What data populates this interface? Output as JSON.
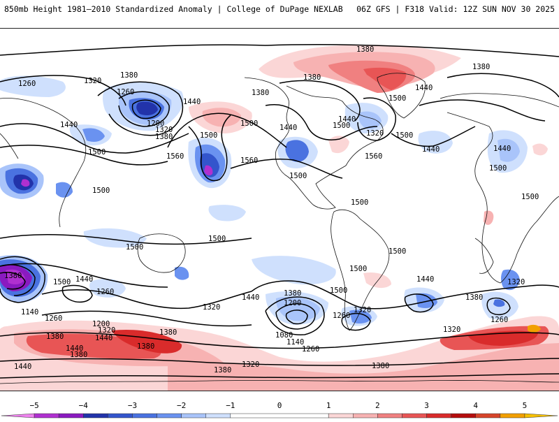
{
  "header": {
    "title": "850mb Height 1981–2010 Standardized Anomaly | College of DuPage NEXLAB",
    "run_info": "06Z GFS | F318 Valid: 12Z SUN NOV 30 2025"
  },
  "colorbar": {
    "ticks": [
      {
        "value": -5,
        "label": "−5"
      },
      {
        "value": -4,
        "label": "−4"
      },
      {
        "value": -3,
        "label": "−3"
      },
      {
        "value": -2,
        "label": "−2"
      },
      {
        "value": -1,
        "label": "−1"
      },
      {
        "value": 0,
        "label": "0"
      },
      {
        "value": 1,
        "label": "1"
      },
      {
        "value": 2,
        "label": "2"
      },
      {
        "value": 3,
        "label": "3"
      },
      {
        "value": 4,
        "label": "4"
      },
      {
        "value": 5,
        "label": "5"
      }
    ],
    "bins": [
      {
        "from": -5.5,
        "to": -5,
        "color": "#ee82ee"
      },
      {
        "from": -5,
        "to": -4.5,
        "color": "#b030d0"
      },
      {
        "from": -4.5,
        "to": -4,
        "color": "#8a1ac0"
      },
      {
        "from": -4,
        "to": -3.5,
        "color": "#2233aa"
      },
      {
        "from": -3.5,
        "to": -3,
        "color": "#3355cc"
      },
      {
        "from": -3,
        "to": -2.5,
        "color": "#4a72e0"
      },
      {
        "from": -2.5,
        "to": -2,
        "color": "#6a92f0"
      },
      {
        "from": -2,
        "to": -1.5,
        "color": "#a9c4fa"
      },
      {
        "from": -1.5,
        "to": -1,
        "color": "#cfe0fd"
      },
      {
        "from": -1,
        "to": 1,
        "color": "#ffffff"
      },
      {
        "from": 1,
        "to": 1.5,
        "color": "#fbd6d6"
      },
      {
        "from": 1.5,
        "to": 2,
        "color": "#f7b2b2"
      },
      {
        "from": 2,
        "to": 2.5,
        "color": "#f08080"
      },
      {
        "from": 2.5,
        "to": 3,
        "color": "#e85555"
      },
      {
        "from": 3,
        "to": 3.5,
        "color": "#d92b2b"
      },
      {
        "from": 3.5,
        "to": 4,
        "color": "#b50d0d"
      },
      {
        "from": 4,
        "to": 4.5,
        "color": "#d6452a"
      },
      {
        "from": 4.5,
        "to": 5,
        "color": "#f2a000"
      },
      {
        "from": 5,
        "to": 5.5,
        "color": "#f6c000"
      }
    ]
  },
  "contour_labels": [
    {
      "text": "1380"
    },
    {
      "text": "1320"
    },
    {
      "text": "1260"
    },
    {
      "text": "1380"
    },
    {
      "text": "1260"
    },
    {
      "text": "1440"
    },
    {
      "text": "1440"
    },
    {
      "text": "1200"
    },
    {
      "text": "1320"
    },
    {
      "text": "1380"
    },
    {
      "text": "1500"
    },
    {
      "text": "1500"
    },
    {
      "text": "1560"
    },
    {
      "text": "1560"
    },
    {
      "text": "1500"
    },
    {
      "text": "1380"
    },
    {
      "text": "1440"
    },
    {
      "text": "1380"
    },
    {
      "text": "1440"
    },
    {
      "text": "1500"
    },
    {
      "text": "1320"
    },
    {
      "text": "1440"
    },
    {
      "text": "1500"
    },
    {
      "text": "1500"
    },
    {
      "text": "1560"
    },
    {
      "text": "1380"
    },
    {
      "text": "1440"
    },
    {
      "text": "1440"
    },
    {
      "text": "1500"
    },
    {
      "text": "1500"
    },
    {
      "text": "1500"
    },
    {
      "text": "1500"
    },
    {
      "text": "1500"
    },
    {
      "text": "1500"
    },
    {
      "text": "1500"
    },
    {
      "text": "1500"
    },
    {
      "text": "1500"
    },
    {
      "text": "1380"
    },
    {
      "text": "1500"
    },
    {
      "text": "1440"
    },
    {
      "text": "1260"
    },
    {
      "text": "1140"
    },
    {
      "text": "1260"
    },
    {
      "text": "1200"
    },
    {
      "text": "1320"
    },
    {
      "text": "1380"
    },
    {
      "text": "1380"
    },
    {
      "text": "1440"
    },
    {
      "text": "1380"
    },
    {
      "text": "1440"
    },
    {
      "text": "1320"
    },
    {
      "text": "1440"
    },
    {
      "text": "1380"
    },
    {
      "text": "1200"
    },
    {
      "text": "1500"
    },
    {
      "text": "1320"
    },
    {
      "text": "1260"
    },
    {
      "text": "1080"
    },
    {
      "text": "1140"
    },
    {
      "text": "1260"
    },
    {
      "text": "1380"
    },
    {
      "text": "1320"
    },
    {
      "text": "1380"
    },
    {
      "text": "1440"
    },
    {
      "text": "1380"
    },
    {
      "text": "1320"
    },
    {
      "text": "1260"
    },
    {
      "text": "1320"
    },
    {
      "text": "1380"
    },
    {
      "text": "1440"
    }
  ]
}
